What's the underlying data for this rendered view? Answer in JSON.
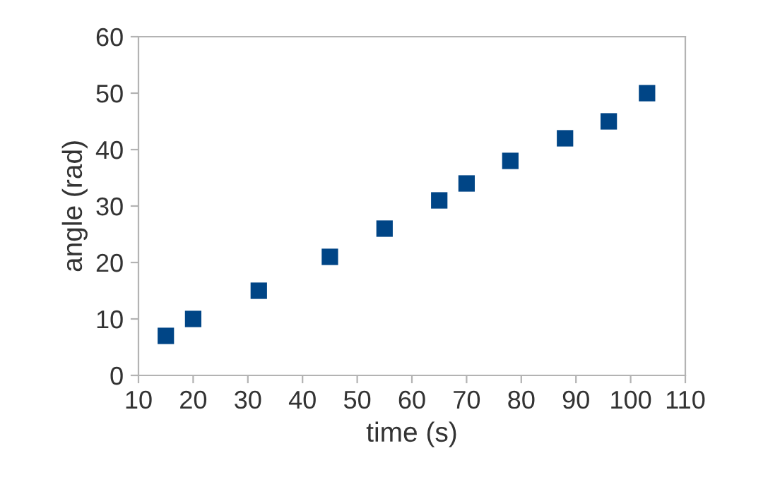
{
  "chart_data": {
    "type": "scatter",
    "xlabel": "time (s)",
    "ylabel": "angle (rad)",
    "x": [
      15,
      20,
      32,
      45,
      55,
      65,
      70,
      78,
      88,
      96,
      103
    ],
    "series": [
      {
        "color": "#004586",
        "values": [
          7,
          10,
          15,
          21,
          26,
          31,
          34,
          38,
          42,
          45,
          50
        ]
      }
    ],
    "xlim": [
      10,
      110
    ],
    "xticks": [
      10,
      20,
      30,
      40,
      50,
      60,
      70,
      80,
      90,
      100,
      110
    ],
    "ylim": [
      0,
      60
    ],
    "yticks": [
      0,
      10,
      20,
      30,
      40,
      50,
      60
    ],
    "marker": "square",
    "grid": false,
    "legend": false
  }
}
